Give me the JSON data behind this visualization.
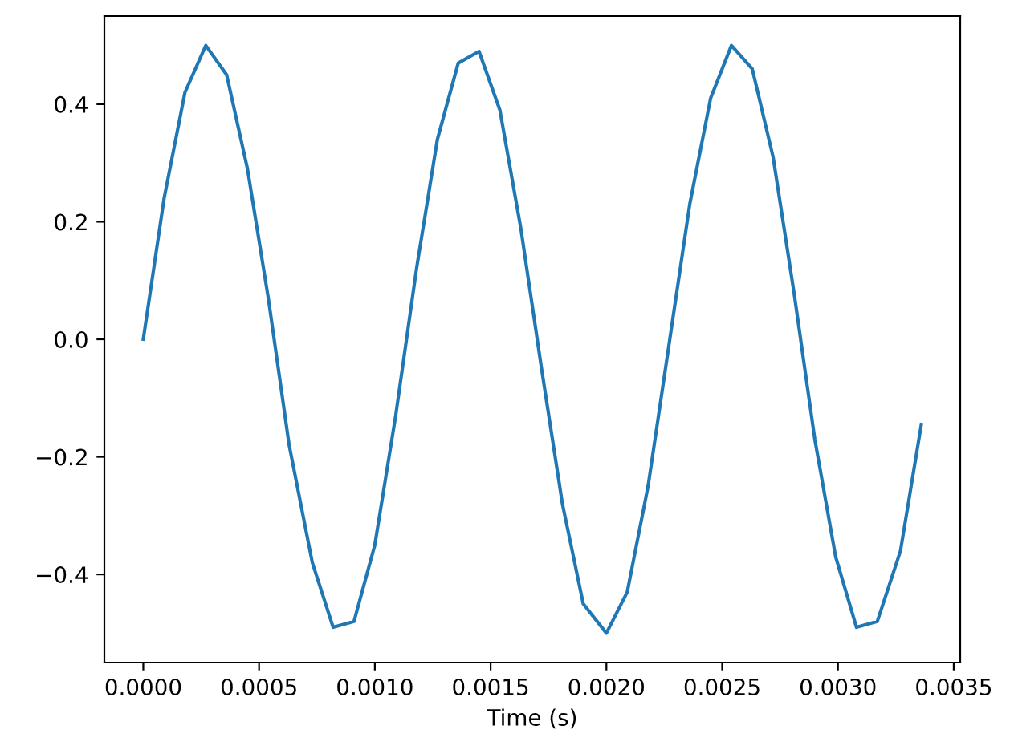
{
  "chart_data": {
    "type": "line",
    "xlabel": "Time (s)",
    "x": [
      0,
      9e-05,
      0.00018,
      0.00027,
      0.00036,
      0.00045,
      0.00054,
      0.00063,
      0.00073,
      0.00082,
      0.00091,
      0.001,
      0.00109,
      0.00118,
      0.00127,
      0.00136,
      0.00145,
      0.00154,
      0.00163,
      0.00172,
      0.00181,
      0.0019,
      0.002,
      0.00209,
      0.00218,
      0.00227,
      0.00236,
      0.00245,
      0.00254,
      0.00263,
      0.00272,
      0.00281,
      0.0029,
      0.00299,
      0.00308,
      0.00317,
      0.00327,
      0.00336
    ],
    "series": [
      {
        "color": "#1f77b4",
        "values": [
          0,
          0.24,
          0.42,
          0.5,
          0.45,
          0.29,
          0.07,
          -0.18,
          -0.38,
          -0.49,
          -0.48,
          -0.35,
          -0.13,
          0.12,
          0.34,
          0.47,
          0.49,
          0.39,
          0.19,
          -0.05,
          -0.28,
          -0.45,
          -0.5,
          -0.43,
          -0.25,
          -0.01,
          0.23,
          0.41,
          0.5,
          0.46,
          0.31,
          0.08,
          -0.17,
          -0.37,
          -0.49,
          -0.48,
          -0.36,
          -0.145
        ]
      }
    ],
    "xlim": [
      -0.000168,
      0.003528
    ],
    "xticks": [
      {
        "value": 0,
        "label": "0.0000"
      },
      {
        "value": 0.0005,
        "label": "0.0005"
      },
      {
        "value": 0.001,
        "label": "0.0010"
      },
      {
        "value": 0.0015,
        "label": "0.0015"
      },
      {
        "value": 0.002,
        "label": "0.0020"
      },
      {
        "value": 0.0025,
        "label": "0.0025"
      },
      {
        "value": 0.003,
        "label": "0.0030"
      },
      {
        "value": 0.0035,
        "label": "0.0035"
      }
    ],
    "ylim": [
      -0.55,
      0.55
    ],
    "yticks": [
      {
        "value": -0.4,
        "label": "−0.4"
      },
      {
        "value": -0.2,
        "label": "−0.2"
      },
      {
        "value": 0,
        "label": "0.0"
      },
      {
        "value": 0.2,
        "label": "0.2"
      },
      {
        "value": 0.4,
        "label": "0.4"
      }
    ],
    "grid": false
  }
}
